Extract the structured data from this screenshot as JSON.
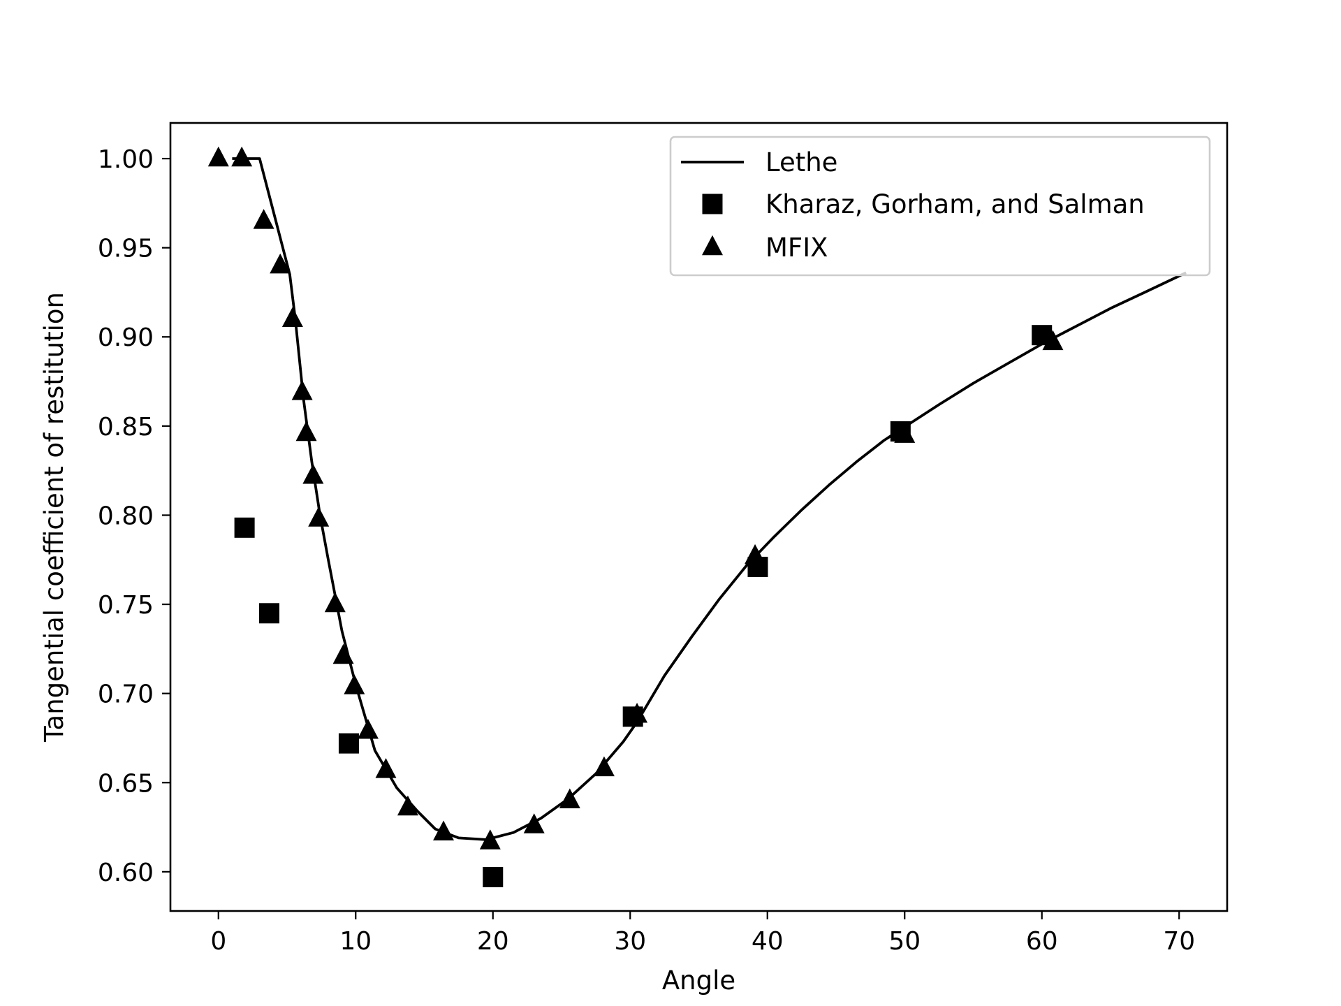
{
  "chart_data": {
    "type": "line",
    "title": "",
    "xlabel": "Angle",
    "ylabel": "Tangential coefficient of restitution",
    "xlim": [
      -3.5,
      73.5
    ],
    "ylim": [
      0.578,
      1.02
    ],
    "xticks": [
      0,
      10,
      20,
      30,
      40,
      50,
      60,
      70
    ],
    "xtick_labels": [
      "0",
      "10",
      "20",
      "30",
      "40",
      "50",
      "60",
      "70"
    ],
    "yticks": [
      0.6,
      0.65,
      0.7,
      0.75,
      0.8,
      0.85,
      0.9,
      0.95,
      1.0
    ],
    "ytick_labels": [
      "0.60",
      "0.65",
      "0.70",
      "0.75",
      "0.80",
      "0.85",
      "0.90",
      "0.95",
      "1.00"
    ],
    "grid": false,
    "legend_position": "top-right",
    "series": [
      {
        "name": "Lethe",
        "style": "line",
        "color": "#000000",
        "x": [
          1,
          3,
          5.2,
          5.6,
          6.2,
          6.8,
          7.4,
          8,
          9,
          10,
          11.4,
          13,
          14.5,
          15.8,
          17.5,
          19.5,
          21.5,
          23.5,
          25.5,
          27.5,
          29.5,
          30.5,
          32.5,
          34.5,
          36.5,
          38.5,
          40.5,
          42.5,
          44.5,
          46.5,
          48.5,
          50.5,
          52.5,
          55,
          57.5,
          60,
          62.5,
          65,
          67.5,
          70.5
        ],
        "y": [
          1.0,
          1.0,
          0.935,
          0.91,
          0.865,
          0.83,
          0.8,
          0.775,
          0.735,
          0.705,
          0.668,
          0.647,
          0.634,
          0.624,
          0.619,
          0.618,
          0.622,
          0.63,
          0.641,
          0.655,
          0.673,
          0.684,
          0.71,
          0.732,
          0.753,
          0.772,
          0.788,
          0.803,
          0.817,
          0.83,
          0.842,
          0.852,
          0.862,
          0.874,
          0.885,
          0.896,
          0.906,
          0.916,
          0.925,
          0.936
        ]
      },
      {
        "name": "Kharaz, Gorham, and Salman",
        "style": "square",
        "color": "#000000",
        "x": [
          1.9,
          3.7,
          9.5,
          20,
          30.2,
          39.3,
          49.7,
          60
        ],
        "y": [
          0.793,
          0.745,
          0.672,
          0.597,
          0.687,
          0.771,
          0.847,
          0.901
        ]
      },
      {
        "name": "MFIX",
        "style": "triangle",
        "color": "#000000",
        "x": [
          0,
          1.7,
          3.3,
          4.5,
          5.4,
          6.1,
          6.4,
          6.9,
          7.3,
          8.5,
          9.1,
          9.9,
          10.9,
          12.2,
          13.8,
          16.4,
          19.8,
          23,
          25.6,
          28.1,
          30.5,
          39.1,
          50,
          60.8
        ],
        "y": [
          1.0,
          1.0,
          0.965,
          0.94,
          0.91,
          0.869,
          0.846,
          0.822,
          0.798,
          0.75,
          0.721,
          0.704,
          0.679,
          0.657,
          0.636,
          0.622,
          0.617,
          0.626,
          0.64,
          0.658,
          0.688,
          0.777,
          0.845,
          0.897
        ]
      }
    ]
  }
}
